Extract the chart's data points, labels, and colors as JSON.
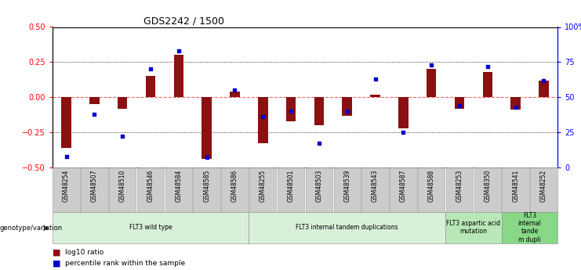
{
  "title": "GDS2242 / 1500",
  "samples": [
    "GSM48254",
    "GSM48507",
    "GSM48510",
    "GSM48546",
    "GSM48584",
    "GSM48585",
    "GSM48586",
    "GSM48255",
    "GSM48501",
    "GSM48503",
    "GSM48539",
    "GSM48543",
    "GSM48587",
    "GSM48588",
    "GSM48253",
    "GSM48350",
    "GSM48541",
    "GSM48252"
  ],
  "log10_ratio": [
    -0.36,
    -0.05,
    -0.08,
    0.15,
    0.3,
    -0.44,
    0.04,
    -0.33,
    -0.17,
    -0.2,
    -0.13,
    0.02,
    -0.22,
    0.2,
    -0.08,
    0.18,
    -0.09,
    0.12
  ],
  "percentile_rank": [
    8,
    38,
    22,
    70,
    83,
    7,
    55,
    36,
    40,
    17,
    40,
    63,
    25,
    73,
    44,
    72,
    43,
    62
  ],
  "groups": [
    {
      "label": "FLT3 wild type",
      "start": 0,
      "end": 7,
      "color": "#d8f0d8"
    },
    {
      "label": "FLT3 internal tandem duplications",
      "start": 7,
      "end": 14,
      "color": "#d8f0d8"
    },
    {
      "label": "FLT3 aspartic acid\nmutation",
      "start": 14,
      "end": 16,
      "color": "#b8e8b8"
    },
    {
      "label": "FLT3\ninternal\ntande\nm dupli",
      "start": 16,
      "end": 18,
      "color": "#88d888"
    }
  ],
  "ylim": [
    -0.5,
    0.5
  ],
  "yticks": [
    -0.5,
    -0.25,
    0.0,
    0.25,
    0.5
  ],
  "right_yticks": [
    0,
    25,
    50,
    75,
    100
  ],
  "bar_color": "#8B1010",
  "dot_color": "#0000CC",
  "zero_line_color": "#FF6666",
  "background_color": "#FFFFFF",
  "tick_bg_color": "#cccccc",
  "genotype_label": "genotype/variation"
}
